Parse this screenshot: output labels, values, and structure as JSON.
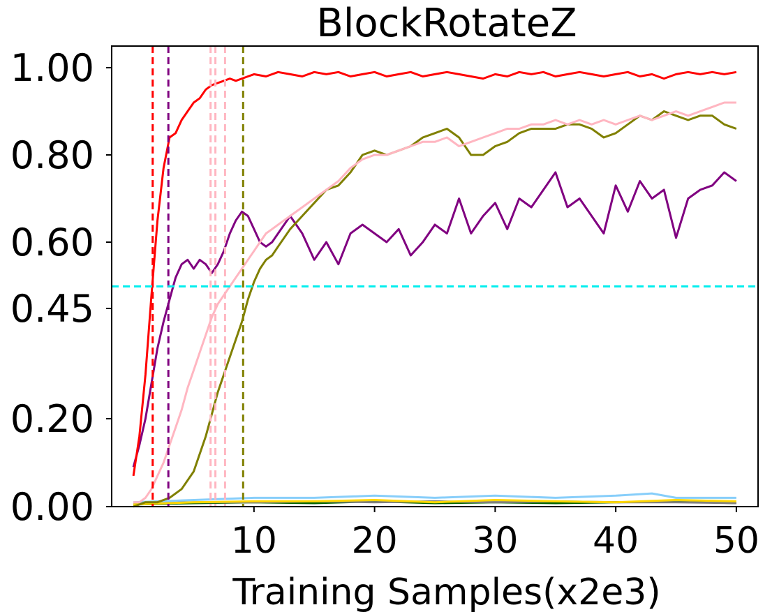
{
  "chart_data": {
    "type": "line",
    "title": "BlockRotateZ",
    "xlabel": "Training Samples(x2e3)",
    "ylabel": "",
    "grid": false,
    "legend": "none",
    "xlim": [
      -1.8,
      51.8
    ],
    "x_ticks": [
      {
        "value": 10,
        "label": "10"
      },
      {
        "value": 20,
        "label": "20"
      },
      {
        "value": 30,
        "label": "30"
      },
      {
        "value": 40,
        "label": "40"
      },
      {
        "value": 50,
        "label": "50"
      }
    ],
    "y_ticks": [
      {
        "value": 0.0,
        "label": "0.00"
      },
      {
        "value": 0.2,
        "label": "0.20"
      },
      {
        "value": 0.45,
        "label": "0.45"
      },
      {
        "value": 0.6,
        "label": "0.60"
      },
      {
        "value": 0.8,
        "label": "0.80"
      },
      {
        "value": 1.0,
        "label": "1.00"
      }
    ],
    "threshold": {
      "value": 0.5,
      "color": "#00eeee",
      "style": "dashed"
    },
    "vlines": [
      {
        "x": 1.6,
        "color": "#ff0000"
      },
      {
        "x": 2.9,
        "color": "#800080"
      },
      {
        "x": 6.4,
        "color": "#ffb6c1"
      },
      {
        "x": 6.8,
        "color": "#ffb6c1"
      },
      {
        "x": 7.6,
        "color": "#ffb6c1"
      },
      {
        "x": 9.1,
        "color": "#808000"
      }
    ],
    "series": [
      {
        "color": "#ff0000",
        "points": [
          [
            0,
            0.07
          ],
          [
            0.5,
            0.16
          ],
          [
            1,
            0.3
          ],
          [
            1.5,
            0.48
          ],
          [
            2,
            0.65
          ],
          [
            2.5,
            0.77
          ],
          [
            3,
            0.84
          ],
          [
            3.5,
            0.85
          ],
          [
            4,
            0.88
          ],
          [
            4.5,
            0.9
          ],
          [
            5,
            0.92
          ],
          [
            5.5,
            0.93
          ],
          [
            6,
            0.95
          ],
          [
            6.5,
            0.96
          ],
          [
            7,
            0.965
          ],
          [
            7.5,
            0.97
          ],
          [
            8,
            0.975
          ],
          [
            8.5,
            0.97
          ],
          [
            9,
            0.975
          ],
          [
            9.5,
            0.98
          ],
          [
            10,
            0.985
          ],
          [
            11,
            0.98
          ],
          [
            12,
            0.99
          ],
          [
            13,
            0.985
          ],
          [
            14,
            0.98
          ],
          [
            15,
            0.99
          ],
          [
            16,
            0.985
          ],
          [
            17,
            0.99
          ],
          [
            18,
            0.98
          ],
          [
            19,
            0.985
          ],
          [
            20,
            0.99
          ],
          [
            21,
            0.98
          ],
          [
            22,
            0.985
          ],
          [
            23,
            0.99
          ],
          [
            24,
            0.98
          ],
          [
            25,
            0.985
          ],
          [
            26,
            0.99
          ],
          [
            27,
            0.985
          ],
          [
            28,
            0.98
          ],
          [
            29,
            0.975
          ],
          [
            30,
            0.985
          ],
          [
            31,
            0.98
          ],
          [
            32,
            0.99
          ],
          [
            33,
            0.985
          ],
          [
            34,
            0.99
          ],
          [
            35,
            0.98
          ],
          [
            36,
            0.985
          ],
          [
            37,
            0.99
          ],
          [
            38,
            0.985
          ],
          [
            39,
            0.98
          ],
          [
            40,
            0.985
          ],
          [
            41,
            0.99
          ],
          [
            42,
            0.98
          ],
          [
            43,
            0.985
          ],
          [
            44,
            0.975
          ],
          [
            45,
            0.985
          ],
          [
            46,
            0.99
          ],
          [
            47,
            0.985
          ],
          [
            48,
            0.99
          ],
          [
            49,
            0.985
          ],
          [
            50,
            0.99
          ]
        ]
      },
      {
        "color": "#ffb6c1",
        "points": [
          [
            0,
            0.01
          ],
          [
            0.5,
            0.01
          ],
          [
            1,
            0.02
          ],
          [
            1.5,
            0.04
          ],
          [
            2,
            0.07
          ],
          [
            2.5,
            0.1
          ],
          [
            3,
            0.14
          ],
          [
            3.5,
            0.18
          ],
          [
            4,
            0.22
          ],
          [
            4.5,
            0.27
          ],
          [
            5,
            0.31
          ],
          [
            5.5,
            0.35
          ],
          [
            6,
            0.39
          ],
          [
            6.5,
            0.43
          ],
          [
            7,
            0.46
          ],
          [
            7.5,
            0.48
          ],
          [
            8,
            0.5
          ],
          [
            8.5,
            0.52
          ],
          [
            9,
            0.54
          ],
          [
            9.5,
            0.56
          ],
          [
            10,
            0.58
          ],
          [
            10.5,
            0.6
          ],
          [
            11,
            0.62
          ],
          [
            11.5,
            0.63
          ],
          [
            12,
            0.64
          ],
          [
            13,
            0.66
          ],
          [
            14,
            0.68
          ],
          [
            15,
            0.7
          ],
          [
            16,
            0.72
          ],
          [
            17,
            0.74
          ],
          [
            18,
            0.77
          ],
          [
            19,
            0.79
          ],
          [
            20,
            0.8
          ],
          [
            21,
            0.8
          ],
          [
            22,
            0.81
          ],
          [
            23,
            0.82
          ],
          [
            24,
            0.83
          ],
          [
            25,
            0.83
          ],
          [
            26,
            0.84
          ],
          [
            27,
            0.82
          ],
          [
            28,
            0.83
          ],
          [
            29,
            0.84
          ],
          [
            30,
            0.85
          ],
          [
            31,
            0.86
          ],
          [
            32,
            0.86
          ],
          [
            33,
            0.87
          ],
          [
            34,
            0.87
          ],
          [
            35,
            0.88
          ],
          [
            36,
            0.87
          ],
          [
            37,
            0.88
          ],
          [
            38,
            0.87
          ],
          [
            39,
            0.88
          ],
          [
            40,
            0.87
          ],
          [
            41,
            0.88
          ],
          [
            42,
            0.89
          ],
          [
            43,
            0.88
          ],
          [
            44,
            0.89
          ],
          [
            45,
            0.9
          ],
          [
            46,
            0.89
          ],
          [
            47,
            0.9
          ],
          [
            48,
            0.91
          ],
          [
            49,
            0.92
          ],
          [
            50,
            0.92
          ]
        ]
      },
      {
        "color": "#808000",
        "points": [
          [
            0,
            0.0
          ],
          [
            1,
            0.01
          ],
          [
            2,
            0.01
          ],
          [
            3,
            0.02
          ],
          [
            4,
            0.04
          ],
          [
            5,
            0.08
          ],
          [
            6,
            0.16
          ],
          [
            7,
            0.26
          ],
          [
            8,
            0.34
          ],
          [
            9,
            0.42
          ],
          [
            9.5,
            0.47
          ],
          [
            10,
            0.51
          ],
          [
            10.5,
            0.54
          ],
          [
            11,
            0.56
          ],
          [
            11.5,
            0.57
          ],
          [
            12,
            0.59
          ],
          [
            13,
            0.63
          ],
          [
            14,
            0.66
          ],
          [
            15,
            0.69
          ],
          [
            16,
            0.72
          ],
          [
            17,
            0.73
          ],
          [
            18,
            0.76
          ],
          [
            19,
            0.8
          ],
          [
            20,
            0.81
          ],
          [
            21,
            0.8
          ],
          [
            22,
            0.81
          ],
          [
            23,
            0.82
          ],
          [
            24,
            0.84
          ],
          [
            25,
            0.85
          ],
          [
            26,
            0.86
          ],
          [
            27,
            0.84
          ],
          [
            28,
            0.8
          ],
          [
            29,
            0.8
          ],
          [
            30,
            0.82
          ],
          [
            31,
            0.83
          ],
          [
            32,
            0.85
          ],
          [
            33,
            0.86
          ],
          [
            34,
            0.86
          ],
          [
            35,
            0.86
          ],
          [
            36,
            0.87
          ],
          [
            37,
            0.87
          ],
          [
            38,
            0.86
          ],
          [
            39,
            0.84
          ],
          [
            40,
            0.85
          ],
          [
            41,
            0.87
          ],
          [
            42,
            0.89
          ],
          [
            43,
            0.88
          ],
          [
            44,
            0.9
          ],
          [
            45,
            0.89
          ],
          [
            46,
            0.88
          ],
          [
            47,
            0.89
          ],
          [
            48,
            0.89
          ],
          [
            49,
            0.87
          ],
          [
            50,
            0.86
          ]
        ]
      },
      {
        "color": "#800080",
        "points": [
          [
            0,
            0.09
          ],
          [
            0.5,
            0.14
          ],
          [
            1,
            0.2
          ],
          [
            1.5,
            0.28
          ],
          [
            2,
            0.36
          ],
          [
            2.5,
            0.42
          ],
          [
            3,
            0.47
          ],
          [
            3.5,
            0.52
          ],
          [
            4,
            0.55
          ],
          [
            4.5,
            0.56
          ],
          [
            5,
            0.54
          ],
          [
            5.5,
            0.56
          ],
          [
            6,
            0.55
          ],
          [
            6.5,
            0.53
          ],
          [
            7,
            0.55
          ],
          [
            7.5,
            0.58
          ],
          [
            8,
            0.62
          ],
          [
            8.5,
            0.65
          ],
          [
            9,
            0.67
          ],
          [
            9.5,
            0.66
          ],
          [
            10,
            0.63
          ],
          [
            10.5,
            0.6
          ],
          [
            11,
            0.59
          ],
          [
            11.5,
            0.6
          ],
          [
            12,
            0.62
          ],
          [
            13,
            0.66
          ],
          [
            14,
            0.62
          ],
          [
            15,
            0.56
          ],
          [
            16,
            0.6
          ],
          [
            17,
            0.55
          ],
          [
            18,
            0.62
          ],
          [
            19,
            0.64
          ],
          [
            20,
            0.62
          ],
          [
            21,
            0.6
          ],
          [
            22,
            0.63
          ],
          [
            23,
            0.57
          ],
          [
            24,
            0.6
          ],
          [
            25,
            0.64
          ],
          [
            26,
            0.62
          ],
          [
            27,
            0.7
          ],
          [
            28,
            0.62
          ],
          [
            29,
            0.66
          ],
          [
            30,
            0.69
          ],
          [
            31,
            0.63
          ],
          [
            32,
            0.7
          ],
          [
            33,
            0.68
          ],
          [
            34,
            0.72
          ],
          [
            35,
            0.76
          ],
          [
            36,
            0.68
          ],
          [
            37,
            0.7
          ],
          [
            38,
            0.66
          ],
          [
            39,
            0.62
          ],
          [
            40,
            0.73
          ],
          [
            41,
            0.67
          ],
          [
            42,
            0.74
          ],
          [
            43,
            0.7
          ],
          [
            44,
            0.72
          ],
          [
            45,
            0.61
          ],
          [
            46,
            0.7
          ],
          [
            47,
            0.72
          ],
          [
            48,
            0.73
          ],
          [
            49,
            0.76
          ],
          [
            50,
            0.74
          ]
        ]
      },
      {
        "color": "#87cefa",
        "points": [
          [
            0,
            0.01
          ],
          [
            5,
            0.015
          ],
          [
            10,
            0.02
          ],
          [
            15,
            0.02
          ],
          [
            20,
            0.025
          ],
          [
            25,
            0.02
          ],
          [
            30,
            0.025
          ],
          [
            35,
            0.02
          ],
          [
            40,
            0.025
          ],
          [
            43,
            0.03
          ],
          [
            45,
            0.02
          ],
          [
            50,
            0.02
          ]
        ]
      },
      {
        "color": "#ffd700",
        "points": [
          [
            0,
            0.005
          ],
          [
            5,
            0.01
          ],
          [
            10,
            0.012
          ],
          [
            15,
            0.012
          ],
          [
            20,
            0.015
          ],
          [
            25,
            0.01
          ],
          [
            30,
            0.015
          ],
          [
            35,
            0.012
          ],
          [
            40,
            0.01
          ],
          [
            45,
            0.015
          ],
          [
            50,
            0.012
          ]
        ]
      },
      {
        "color": "#808080",
        "points": [
          [
            0,
            0.008
          ],
          [
            5,
            0.01
          ],
          [
            10,
            0.01
          ],
          [
            15,
            0.012
          ],
          [
            20,
            0.01
          ],
          [
            25,
            0.012
          ],
          [
            30,
            0.01
          ],
          [
            35,
            0.012
          ],
          [
            40,
            0.01
          ],
          [
            45,
            0.01
          ],
          [
            50,
            0.008
          ]
        ]
      },
      {
        "color": "#006400",
        "points": [
          [
            0,
            0.005
          ],
          [
            5,
            0.008
          ],
          [
            10,
            0.01
          ],
          [
            15,
            0.008
          ],
          [
            20,
            0.012
          ],
          [
            25,
            0.008
          ],
          [
            30,
            0.01
          ],
          [
            35,
            0.008
          ],
          [
            40,
            0.01
          ],
          [
            45,
            0.012
          ],
          [
            50,
            0.008
          ]
        ]
      }
    ]
  }
}
